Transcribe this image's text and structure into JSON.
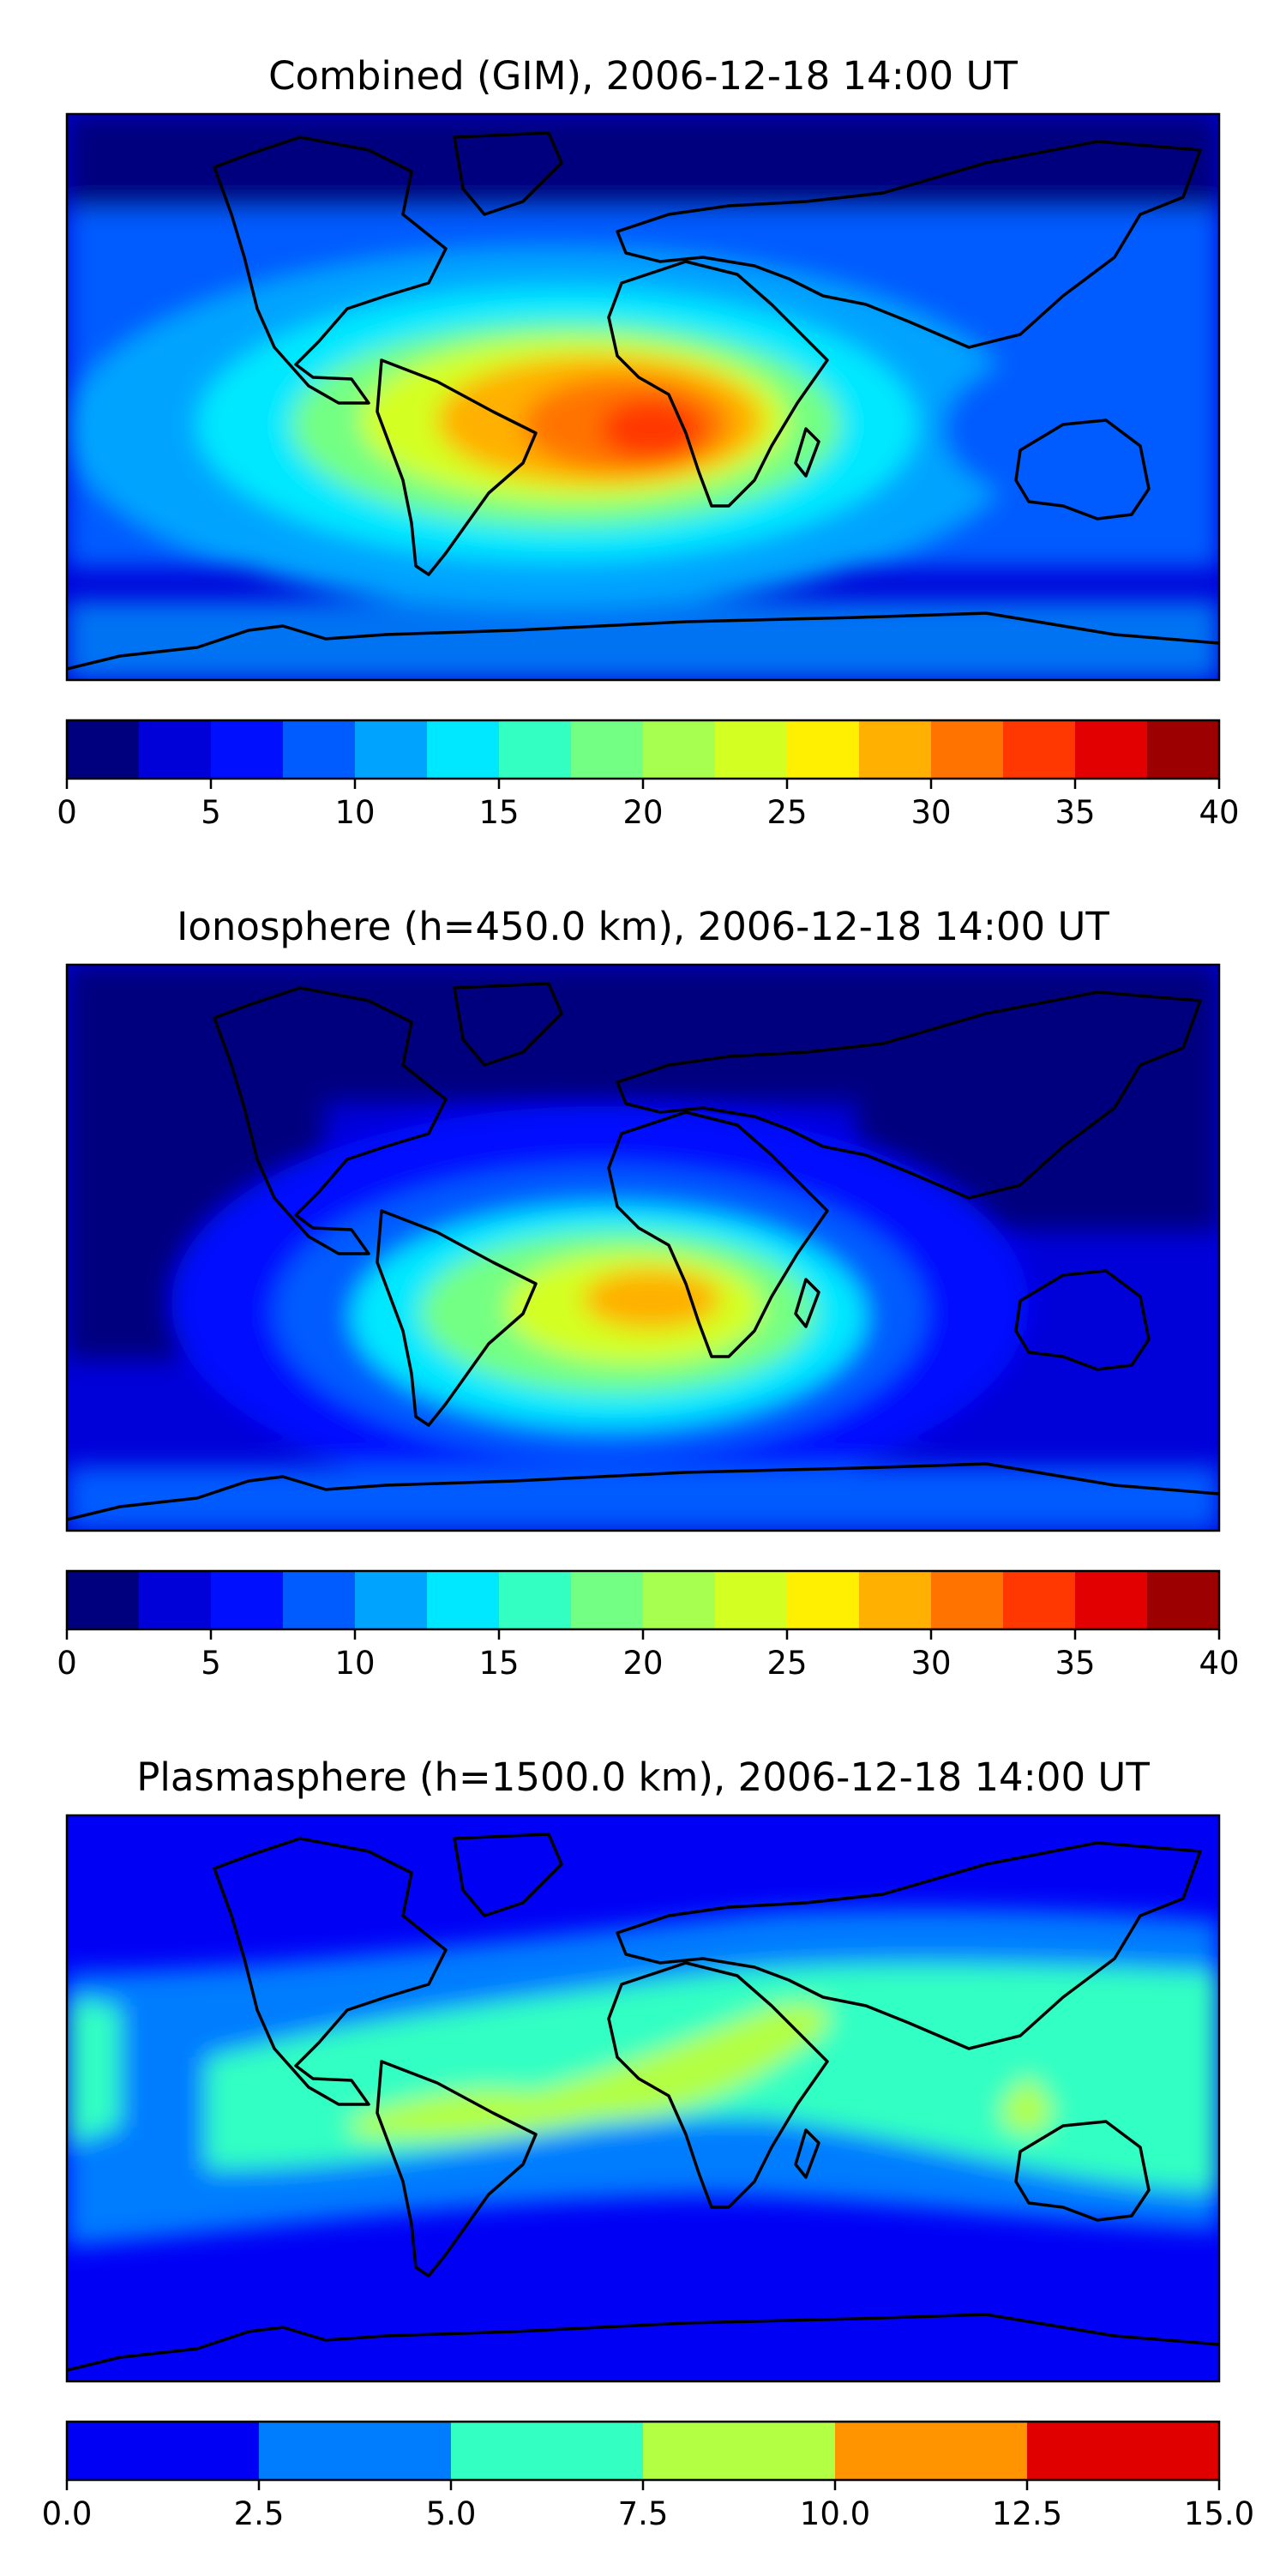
{
  "panels": [
    {
      "title": "Combined (GIM), 2006-12-18 14:00 UT",
      "colorbar": {
        "ticks": [
          "0",
          "5",
          "10",
          "15",
          "20",
          "25",
          "30",
          "35",
          "40"
        ],
        "colors": [
          "#00007f",
          "#0000d8",
          "#0010ff",
          "#005cff",
          "#00a4ff",
          "#00e8ff",
          "#33ffc3",
          "#73ff83",
          "#a7ff4f",
          "#d4ff23",
          "#ffef00",
          "#ffb000",
          "#ff7300",
          "#ff3700",
          "#e30000",
          "#9c0000"
        ]
      },
      "field_color_range": [
        2.5,
        33
      ]
    },
    {
      "title": "Ionosphere  (h=450.0 km), 2006-12-18 14:00 UT",
      "colorbar": {
        "ticks": [
          "0",
          "5",
          "10",
          "15",
          "20",
          "25",
          "30",
          "35",
          "40"
        ],
        "colors": [
          "#00007f",
          "#0000d8",
          "#0010ff",
          "#005cff",
          "#00a4ff",
          "#00e8ff",
          "#33ffc3",
          "#73ff83",
          "#a7ff4f",
          "#d4ff23",
          "#ffef00",
          "#ffb000",
          "#ff7300",
          "#ff3700",
          "#e30000",
          "#9c0000"
        ]
      },
      "field_color_range": [
        1,
        30
      ]
    },
    {
      "title": "Plasmasphere (h=1500.0 km), 2006-12-18 14:00 UT",
      "colorbar": {
        "ticks": [
          "0.0",
          "2.5",
          "5.0",
          "7.5",
          "10.0",
          "12.5",
          "15.0"
        ],
        "colors": [
          "#0000f5",
          "#007cff",
          "#33ffc3",
          "#b3ff43",
          "#ff9300",
          "#e00000"
        ]
      },
      "field_color_range": [
        1,
        10
      ]
    }
  ]
}
